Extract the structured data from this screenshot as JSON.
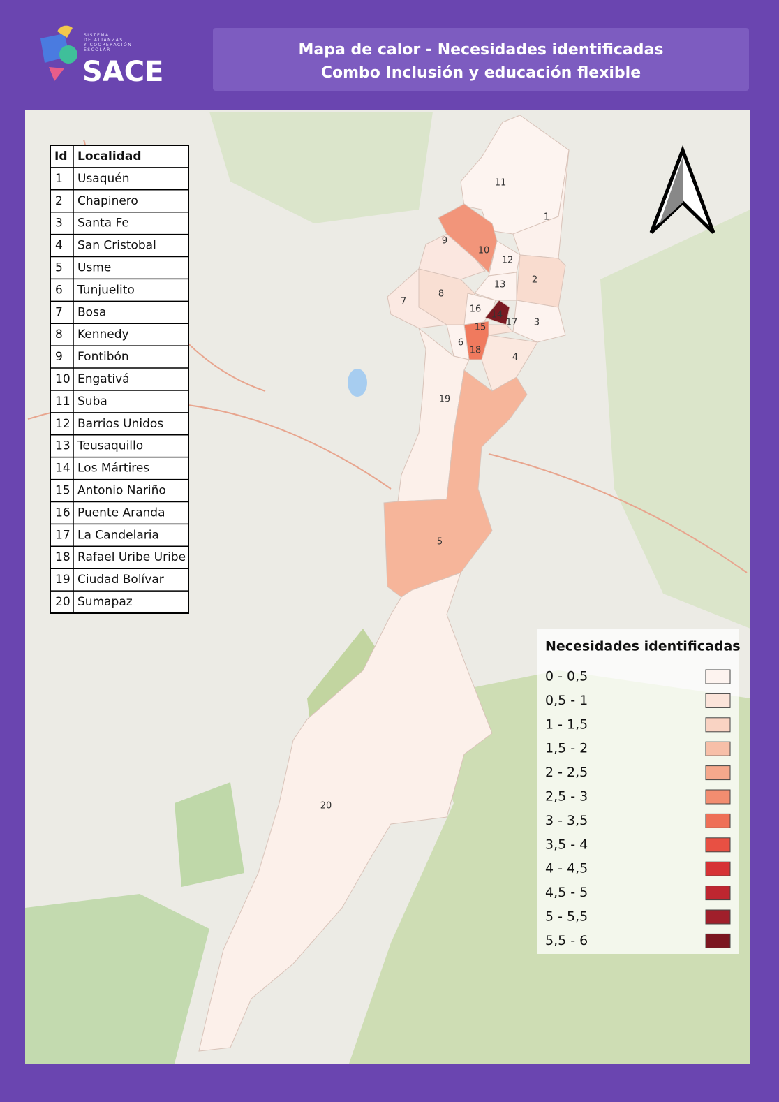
{
  "logo": {
    "small_text": [
      "SISTEMA",
      "DE ALIANZAS",
      "Y COOPERACIÓN",
      "ESCOLAR"
    ],
    "name": "SACE"
  },
  "header": {
    "title": "Mapa de calor - Necesidades identificadas",
    "subtitle": "Combo Inclusión y educación flexible"
  },
  "table": {
    "columns": [
      "Id",
      "Localidad"
    ],
    "rows": [
      [
        "1",
        "Usaquén"
      ],
      [
        "2",
        "Chapinero"
      ],
      [
        "3",
        "Santa Fe"
      ],
      [
        "4",
        "San Cristobal"
      ],
      [
        "5",
        "Usme"
      ],
      [
        "6",
        "Tunjuelito"
      ],
      [
        "7",
        "Bosa"
      ],
      [
        "8",
        "Kennedy"
      ],
      [
        "9",
        "Fontibón"
      ],
      [
        "10",
        "Engativá"
      ],
      [
        "11",
        "Suba"
      ],
      [
        "12",
        "Barrios Unidos"
      ],
      [
        "13",
        "Teusaquillo"
      ],
      [
        "14",
        "Los Mártires"
      ],
      [
        "15",
        "Antonio Nariño"
      ],
      [
        "16",
        "Puente Aranda"
      ],
      [
        "17",
        "La Candelaria"
      ],
      [
        "18",
        "Rafael Uribe Uribe"
      ],
      [
        "19",
        "Ciudad Bolívar"
      ],
      [
        "20",
        "Sumapaz"
      ]
    ]
  },
  "map": {
    "labels": [
      "1",
      "2",
      "3",
      "4",
      "5",
      "6",
      "7",
      "8",
      "9",
      "10",
      "11",
      "12",
      "13",
      "14",
      "15",
      "16",
      "17",
      "18",
      "19",
      "20"
    ]
  },
  "legend": {
    "title": "Necesidades identificadas",
    "items": [
      {
        "label": "0 - 0,5",
        "color": "#fdf3ef"
      },
      {
        "label": "0,5 - 1",
        "color": "#fbe4da"
      },
      {
        "label": "1 - 1,5",
        "color": "#f9d3c3"
      },
      {
        "label": "1,5 - 2",
        "color": "#f7bfa8"
      },
      {
        "label": "2 - 2,5",
        "color": "#f5a88c"
      },
      {
        "label": "2,5 - 3",
        "color": "#f28d70"
      },
      {
        "label": "3 - 3,5",
        "color": "#ee7057"
      },
      {
        "label": "3,5 - 4",
        "color": "#e85043"
      },
      {
        "label": "4 - 4,5",
        "color": "#d63235"
      },
      {
        "label": "4,5 - 5",
        "color": "#be2630"
      },
      {
        "label": "5 - 5,5",
        "color": "#a01f2b"
      },
      {
        "label": "5,5 - 6",
        "color": "#7b1620"
      }
    ]
  }
}
